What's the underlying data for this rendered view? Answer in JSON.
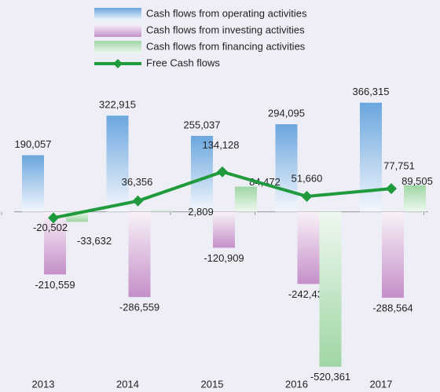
{
  "chart_data": {
    "type": "bar",
    "categories": [
      "2013",
      "2014",
      "2015",
      "2016",
      "2017"
    ],
    "ylim": [
      -550000,
      400000
    ],
    "series": [
      {
        "name": "Cash flows from operating activities",
        "color": "#6aa6de",
        "values": [
          190057,
          322915,
          255037,
          294095,
          366315
        ],
        "value_labels": [
          "190,057",
          "322,915",
          "255,037",
          "294,095",
          "366,315"
        ]
      },
      {
        "name": "Cash flows from investing activities",
        "color": "#c58fc8",
        "values": [
          -210559,
          -286559,
          -120909,
          -242435,
          -288564
        ],
        "value_labels": [
          "-210,559",
          "-286,559",
          "-120,909",
          "-242,435",
          "-288,564"
        ]
      },
      {
        "name": "Cash flows from financing activities",
        "color": "#9fd6a4",
        "values": [
          -33632,
          2809,
          84472,
          -520361,
          89505
        ],
        "value_labels": [
          "-33,632",
          "2,809",
          "84,472",
          "-520,361",
          "89,505"
        ]
      },
      {
        "name": "Free Cash flows",
        "color": "#1f9a3c",
        "type": "line",
        "values": [
          -20502,
          36356,
          134128,
          51660,
          77751
        ],
        "value_labels": [
          "-20,502",
          "36,356",
          "134,128",
          "51,660",
          "77,751"
        ]
      }
    ]
  }
}
